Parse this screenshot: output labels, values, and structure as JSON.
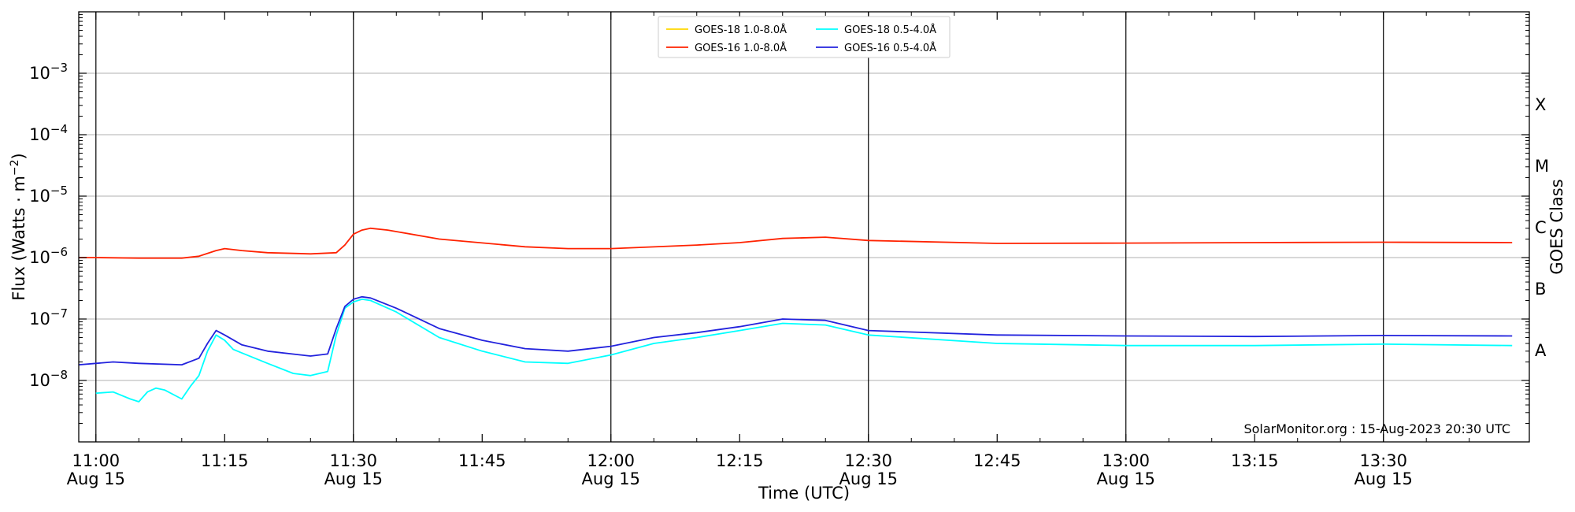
{
  "chart_data": {
    "type": "line",
    "title": "",
    "xlabel": "Time (UTC)",
    "ylabel": "Flux (Watts · m⁻²)",
    "ylabel_right": "GOES Class",
    "y_scale": "log",
    "ylim": [
      1e-09,
      0.01
    ],
    "xlim": [
      "2023-08-15 10:58",
      "2023-08-15 13:47"
    ],
    "grid": "horizontal",
    "legend_position": "top-center",
    "credit": "SolarMonitor.org : 15-Aug-2023 20:30 UTC",
    "x_ticks": [
      {
        "time": "11:00",
        "date": "Aug 15"
      },
      {
        "time": "11:15",
        "date": ""
      },
      {
        "time": "11:30",
        "date": "Aug 15"
      },
      {
        "time": "11:45",
        "date": ""
      },
      {
        "time": "12:00",
        "date": "Aug 15"
      },
      {
        "time": "12:15",
        "date": ""
      },
      {
        "time": "12:30",
        "date": "Aug 15"
      },
      {
        "time": "12:45",
        "date": ""
      },
      {
        "time": "13:00",
        "date": "Aug 15"
      },
      {
        "time": "13:15",
        "date": ""
      },
      {
        "time": "13:30",
        "date": "Aug 15"
      }
    ],
    "y_ticks": [
      {
        "value": 1e-08,
        "mant": "10",
        "exp": "−8"
      },
      {
        "value": 1e-07,
        "mant": "10",
        "exp": "−7"
      },
      {
        "value": 1e-06,
        "mant": "10",
        "exp": "−6"
      },
      {
        "value": 1e-05,
        "mant": "10",
        "exp": "−5"
      },
      {
        "value": 0.0001,
        "mant": "10",
        "exp": "−4"
      },
      {
        "value": 0.001,
        "mant": "10",
        "exp": "−3"
      }
    ],
    "goes_classes": [
      {
        "label": "A",
        "value": 3.16e-08
      },
      {
        "label": "B",
        "value": 3.16e-07
      },
      {
        "label": "C",
        "value": 3.16e-06
      },
      {
        "label": "M",
        "value": 3.16e-05
      },
      {
        "label": "X",
        "value": 0.000316
      }
    ],
    "series": [
      {
        "name": "GOES-18 1.0-8.0Å",
        "color": "#ffd700",
        "x": [],
        "values": []
      },
      {
        "name": "GOES-18 0.5-4.0Å",
        "color": "#00ffff",
        "x": [
          "11:00",
          "11:02",
          "11:04",
          "11:05",
          "11:06",
          "11:07",
          "11:08",
          "11:10",
          "11:11",
          "11:12",
          "11:13",
          "11:14",
          "11:15",
          "11:16",
          "11:17",
          "11:20",
          "11:23",
          "11:25",
          "11:27",
          "11:28",
          "11:29",
          "11:30",
          "11:31",
          "11:32",
          "11:35",
          "11:40",
          "11:45",
          "11:50",
          "11:55",
          "12:00",
          "12:05",
          "12:10",
          "12:15",
          "12:20",
          "12:25",
          "12:30",
          "12:45",
          "13:00",
          "13:15",
          "13:30",
          "13:45"
        ],
        "values": [
          6.2e-09,
          6.5e-09,
          5e-09,
          4.5e-09,
          6.5e-09,
          7.5e-09,
          7e-09,
          5e-09,
          8e-09,
          1.2e-08,
          3e-08,
          5.5e-08,
          4.5e-08,
          3.2e-08,
          2.8e-08,
          1.9e-08,
          1.3e-08,
          1.2e-08,
          1.4e-08,
          5.5e-08,
          1.5e-07,
          1.9e-07,
          2.1e-07,
          2e-07,
          1.3e-07,
          5e-08,
          3e-08,
          2e-08,
          1.9e-08,
          2.6e-08,
          4e-08,
          5e-08,
          6.5e-08,
          8.5e-08,
          8e-08,
          5.5e-08,
          4e-08,
          3.7e-08,
          3.7e-08,
          3.9e-08,
          3.7e-08
        ]
      },
      {
        "name": "GOES-16 1.0-8.0Å",
        "color": "#ff2200",
        "x": [
          "10:58",
          "11:00",
          "11:05",
          "11:10",
          "11:12",
          "11:14",
          "11:15",
          "11:17",
          "11:20",
          "11:25",
          "11:28",
          "11:29",
          "11:30",
          "11:31",
          "11:32",
          "11:34",
          "11:40",
          "11:50",
          "11:55",
          "12:00",
          "12:10",
          "12:15",
          "12:20",
          "12:25",
          "12:30",
          "12:45",
          "13:00",
          "13:15",
          "13:30",
          "13:45"
        ],
        "values": [
          1e-06,
          1e-06,
          9.8e-07,
          9.8e-07,
          1.05e-06,
          1.3e-06,
          1.4e-06,
          1.3e-06,
          1.2e-06,
          1.15e-06,
          1.2e-06,
          1.6e-06,
          2.4e-06,
          2.8e-06,
          3e-06,
          2.8e-06,
          2e-06,
          1.5e-06,
          1.4e-06,
          1.4e-06,
          1.6e-06,
          1.75e-06,
          2.05e-06,
          2.15e-06,
          1.9e-06,
          1.7e-06,
          1.72e-06,
          1.75e-06,
          1.78e-06,
          1.75e-06
        ]
      },
      {
        "name": "GOES-16 0.5-4.0Å",
        "color": "#2222dd",
        "x": [
          "10:58",
          "11:00",
          "11:02",
          "11:05",
          "11:10",
          "11:12",
          "11:13",
          "11:14",
          "11:15",
          "11:17",
          "11:20",
          "11:25",
          "11:27",
          "11:28",
          "11:29",
          "11:30",
          "11:31",
          "11:32",
          "11:35",
          "11:40",
          "11:45",
          "11:50",
          "11:55",
          "12:00",
          "12:05",
          "12:10",
          "12:15",
          "12:20",
          "12:25",
          "12:30",
          "12:45",
          "13:00",
          "13:15",
          "13:30",
          "13:45"
        ],
        "values": [
          1.8e-08,
          1.9e-08,
          2e-08,
          1.9e-08,
          1.8e-08,
          2.3e-08,
          4e-08,
          6.5e-08,
          5.5e-08,
          3.8e-08,
          3e-08,
          2.5e-08,
          2.7e-08,
          7e-08,
          1.6e-07,
          2.1e-07,
          2.3e-07,
          2.2e-07,
          1.5e-07,
          7e-08,
          4.5e-08,
          3.3e-08,
          3e-08,
          3.6e-08,
          5e-08,
          6e-08,
          7.5e-08,
          1e-07,
          9.5e-08,
          6.5e-08,
          5.5e-08,
          5.3e-08,
          5.2e-08,
          5.4e-08,
          5.3e-08
        ]
      }
    ]
  }
}
